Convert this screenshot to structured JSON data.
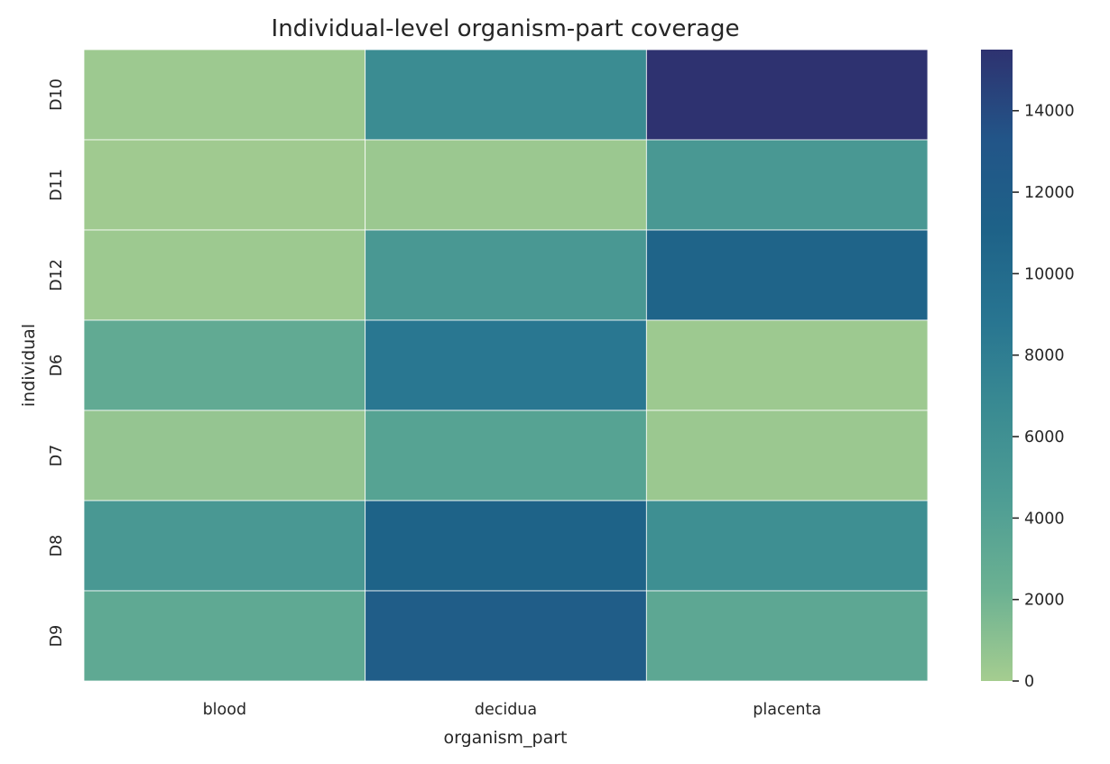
{
  "chart_data": {
    "type": "heatmap",
    "title": "Individual-level organism-part coverage",
    "xlabel": "organism_part",
    "ylabel": "individual",
    "x_categories": [
      "blood",
      "decidua",
      "placenta"
    ],
    "y_categories": [
      "D10",
      "D11",
      "D12",
      "D6",
      "D7",
      "D8",
      "D9"
    ],
    "values": [
      [
        300,
        6500,
        15500
      ],
      [
        200,
        400,
        5000
      ],
      [
        300,
        5000,
        10800
      ],
      [
        3000,
        8700,
        300
      ],
      [
        600,
        3800,
        400
      ],
      [
        5000,
        11000,
        6200
      ],
      [
        3100,
        12000,
        3300
      ]
    ],
    "colorbar": {
      "min": 0,
      "max": 15500,
      "ticks": [
        0,
        2000,
        4000,
        6000,
        8000,
        10000,
        12000,
        14000
      ]
    },
    "colormap": {
      "name": "crest",
      "stops": [
        "#a5cd90",
        "#6bb192",
        "#4e9d94",
        "#3a8b92",
        "#287591",
        "#1e6288",
        "#225588",
        "#2e3270"
      ]
    }
  }
}
